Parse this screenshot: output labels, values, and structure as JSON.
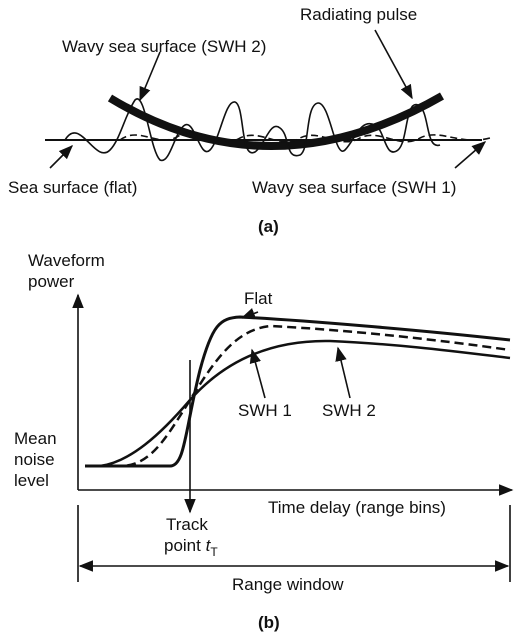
{
  "panel_a": {
    "radiating_pulse": "Radiating pulse",
    "wavy_swh2": "Wavy sea surface (SWH 2)",
    "flat_surface": "Sea surface (flat)",
    "wavy_swh1": "Wavy sea surface (SWH 1)",
    "caption": "(a)"
  },
  "panel_b": {
    "y_label": [
      "Waveform",
      "power"
    ],
    "flat": "Flat",
    "swh1": "SWH 1",
    "swh2": "SWH 2",
    "noise_label": [
      "Mean",
      "noise",
      "level"
    ],
    "x_label": "Time delay (range bins)",
    "track_point": {
      "lines": [
        "Track",
        "point"
      ],
      "symbol": "t",
      "subscript": "T"
    },
    "range_window": "Range window",
    "caption": "(b)"
  }
}
